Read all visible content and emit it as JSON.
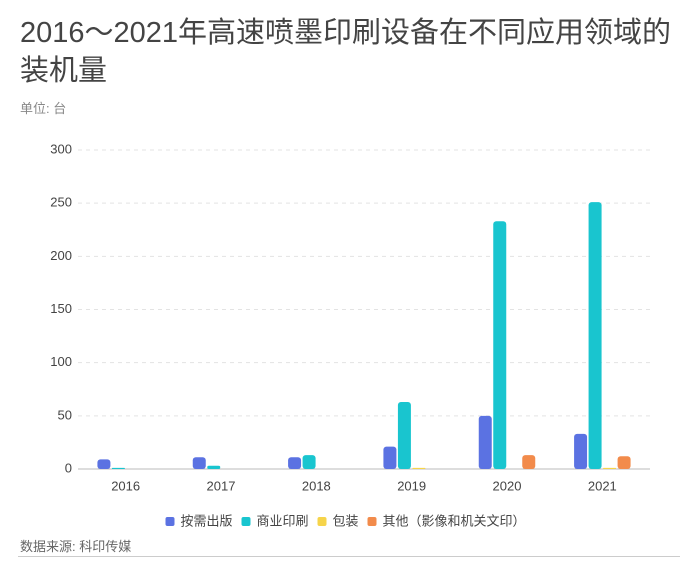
{
  "chart_data": {
    "type": "bar",
    "title": "2016～2021年高速喷墨印刷设备在不同应用领域的装机量",
    "subtitle": "单位: 台",
    "source": "数据来源: 科印传媒",
    "categories": [
      "2016",
      "2017",
      "2018",
      "2019",
      "2020",
      "2021"
    ],
    "series": [
      {
        "name": "按需出版",
        "color": "#5b72e2",
        "values": [
          9,
          11,
          11,
          21,
          50,
          33
        ]
      },
      {
        "name": "商业印刷",
        "color": "#19c5cf",
        "values": [
          1,
          3,
          13,
          63,
          233,
          251
        ]
      },
      {
        "name": "包装",
        "color": "#f6d44a",
        "values": [
          0,
          0,
          0,
          1,
          0,
          1
        ]
      },
      {
        "name": "其他（影像和机关文印）",
        "color": "#f28b4b",
        "values": [
          0,
          0,
          0,
          0,
          13,
          12
        ]
      }
    ],
    "ylim": [
      0,
      300
    ],
    "yticks": [
      0,
      50,
      100,
      150,
      200,
      250,
      300
    ],
    "grid": true
  }
}
